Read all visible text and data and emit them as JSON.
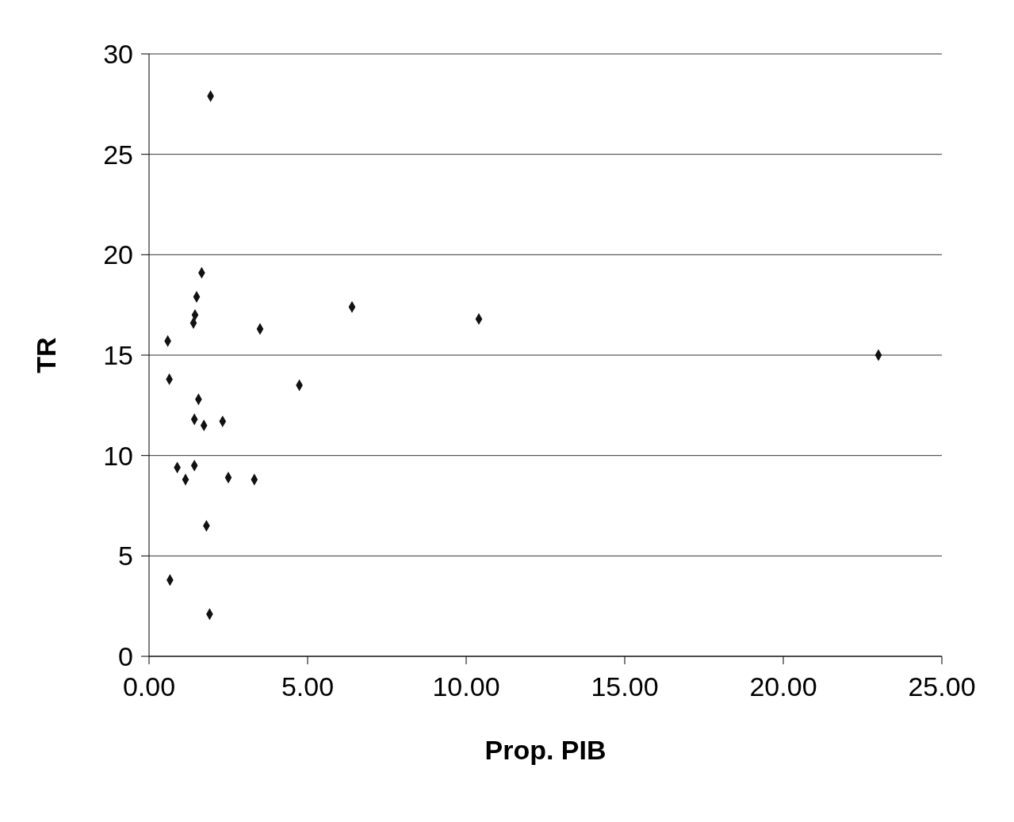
{
  "chart_data": {
    "type": "scatter",
    "xlabel": "Prop. PIB",
    "ylabel": "TR",
    "x": [
      1.94,
      1.66,
      1.5,
      1.45,
      1.4,
      0.59,
      3.5,
      6.4,
      10.4,
      23.0,
      0.64,
      4.74,
      1.56,
      1.43,
      1.73,
      2.32,
      0.89,
      1.43,
      1.15,
      2.5,
      3.32,
      1.81,
      0.66,
      1.91
    ],
    "series": [
      {
        "color": "#111111",
        "values": [
          27.9,
          19.1,
          17.9,
          17.0,
          16.6,
          15.7,
          16.3,
          17.4,
          16.8,
          15.0,
          13.8,
          13.5,
          12.8,
          11.8,
          11.5,
          11.7,
          9.4,
          9.5,
          8.8,
          8.9,
          8.8,
          6.5,
          3.8,
          2.1
        ]
      }
    ],
    "xlim": [
      0,
      25
    ],
    "xticks": [
      {
        "value": 0,
        "label": "0.00"
      },
      {
        "value": 5,
        "label": "5.00"
      },
      {
        "value": 10,
        "label": "10.00"
      },
      {
        "value": 15,
        "label": "15.00"
      },
      {
        "value": 20,
        "label": "20.00"
      },
      {
        "value": 25,
        "label": "25.00"
      }
    ],
    "ylim": [
      0,
      30
    ],
    "yticks": [
      0,
      5,
      10,
      15,
      20,
      25,
      30
    ],
    "grid": "y",
    "marker": "diamond",
    "legend": false
  }
}
